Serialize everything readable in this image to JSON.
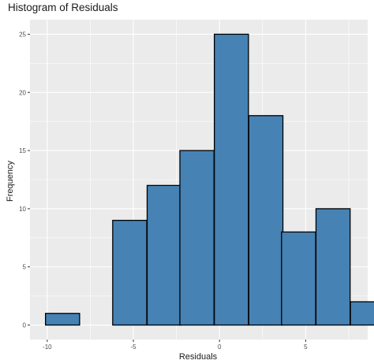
{
  "chart_data": {
    "type": "bar",
    "title": "Histogram of Residuals",
    "xlabel": "Residuals",
    "ylabel": "Frequency",
    "bin_edges": [
      -10.1,
      -8.1,
      -6.2,
      -4.2,
      -2.3,
      -0.3,
      1.7,
      3.6,
      5.6,
      7.6
    ],
    "bin_width": 1.98,
    "values": [
      1,
      0,
      9,
      12,
      15,
      25,
      18,
      8,
      10,
      2
    ],
    "x_ticks": [
      -10,
      -5,
      0,
      5
    ],
    "x_tick_labels": [
      "-10",
      "-5",
      "0",
      "5"
    ],
    "y_ticks": [
      0,
      5,
      10,
      15,
      20,
      25
    ],
    "y_tick_labels": [
      "0",
      "5",
      "10",
      "15",
      "20",
      "25"
    ],
    "xlim": [
      -11.0,
      8.6
    ],
    "ylim": [
      -1.25,
      26.25
    ],
    "grid": true,
    "colors": {
      "bar_fill": "#4682b4",
      "bar_stroke": "#000000",
      "panel_bg": "#ebebeb",
      "grid": "#ffffff"
    }
  }
}
